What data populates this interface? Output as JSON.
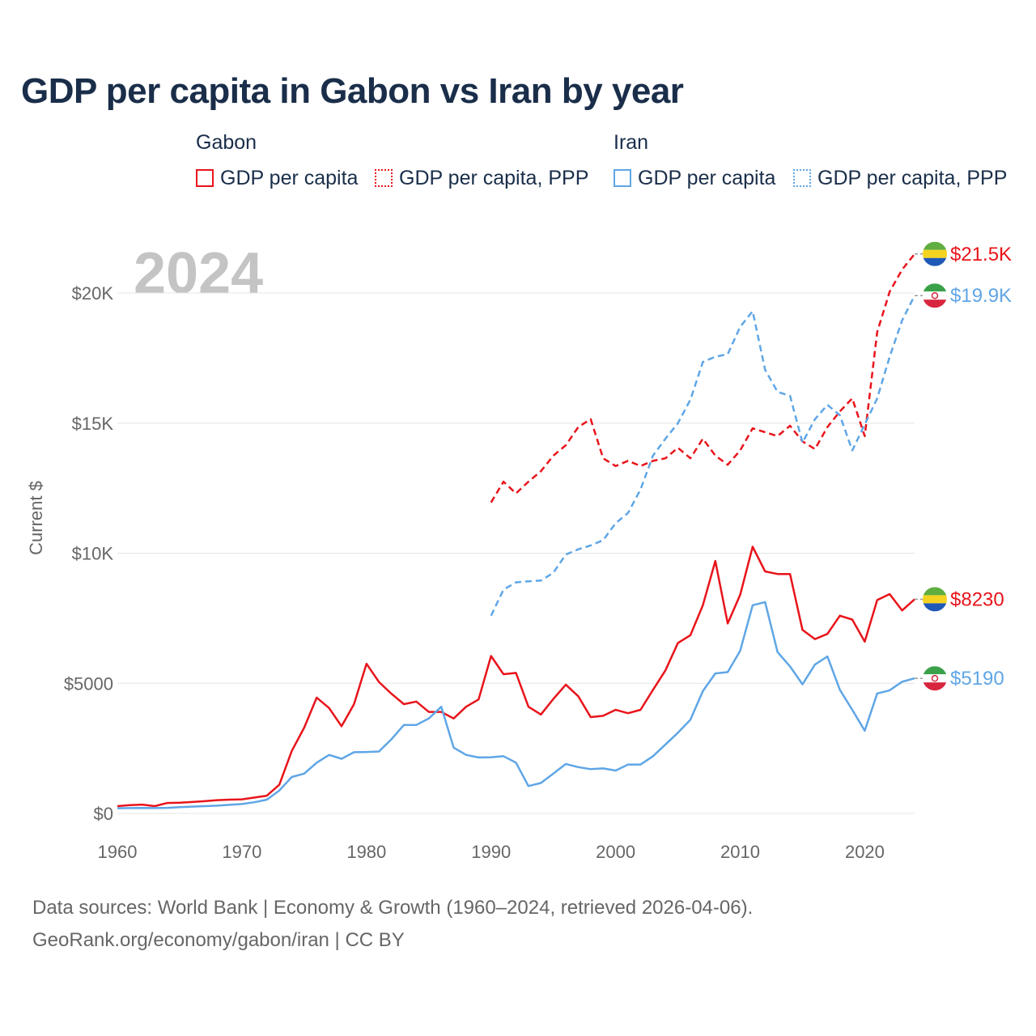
{
  "title": "GDP per capita in Gabon vs Iran by year",
  "year_watermark": "2024",
  "legend": {
    "groups": [
      {
        "title": "Gabon",
        "items": [
          {
            "label": "GDP per capita",
            "color": "#e8141b",
            "style": "solid"
          },
          {
            "label": "GDP per capita, PPP",
            "color": "#e8141b",
            "style": "dotted"
          }
        ]
      },
      {
        "title": "Iran",
        "items": [
          {
            "label": "GDP per capita",
            "color": "#5fa6e6",
            "style": "solid"
          },
          {
            "label": "GDP per capita, PPP",
            "color": "#5fa6e6",
            "style": "dotted"
          }
        ]
      }
    ]
  },
  "footer": {
    "line1": "Data sources: World Bank | Economy & Growth (1960–2024, retrieved 2026-04-06).",
    "line2": "GeoRank.org/economy/gabon/iran | CC BY"
  },
  "chart_data": {
    "type": "line",
    "title": "GDP per capita in Gabon vs Iran by year",
    "xlabel": "",
    "ylabel": "Current $",
    "xlim": [
      1960,
      2024
    ],
    "ylim": [
      0,
      22000
    ],
    "x_ticks": [
      1960,
      1970,
      1980,
      1990,
      2000,
      2010,
      2020
    ],
    "x_tick_labels": [
      "1960",
      "1970",
      "1980",
      "1990",
      "2000",
      "2010",
      "2020"
    ],
    "y_ticks": [
      0,
      5000,
      10000,
      15000,
      20000
    ],
    "y_tick_labels": [
      "$0",
      "$5000",
      "$10K",
      "$15K",
      "$20K"
    ],
    "grid": true,
    "series": [
      {
        "name": "Gabon GDP per capita",
        "country": "Gabon",
        "color": "#e8141b",
        "dashed": false,
        "end_label": "$8230",
        "x_start": 1960,
        "values": [
          280,
          320,
          340,
          280,
          400,
          410,
          440,
          470,
          510,
          530,
          540,
          610,
          680,
          1100,
          2400,
          3300,
          4450,
          4050,
          3350,
          4200,
          5750,
          5050,
          4600,
          4200,
          4300,
          3900,
          3900,
          3650,
          4100,
          4380,
          6050,
          5350,
          5400,
          4100,
          3800,
          4400,
          4950,
          4500,
          3700,
          3750,
          3980,
          3850,
          3980,
          4750,
          5500,
          6550,
          6850,
          8000,
          9700,
          7300,
          8400,
          10250,
          9300,
          9200,
          9200,
          7050,
          6700,
          6900,
          7600,
          7450,
          6600,
          8200,
          8430,
          7800,
          8230
        ]
      },
      {
        "name": "Iran GDP per capita",
        "country": "Iran",
        "color": "#5fa6e6",
        "dashed": false,
        "end_label": "$5190",
        "x_start": 1960,
        "values": [
          200,
          205,
          210,
          205,
          215,
          240,
          260,
          280,
          300,
          330,
          360,
          430,
          530,
          880,
          1400,
          1530,
          1950,
          2250,
          2100,
          2350,
          2360,
          2380,
          2850,
          3400,
          3400,
          3650,
          4100,
          2530,
          2250,
          2150,
          2160,
          2200,
          1950,
          1050,
          1170,
          1530,
          1900,
          1780,
          1700,
          1730,
          1650,
          1880,
          1880,
          2200,
          2650,
          3100,
          3600,
          4700,
          5380,
          5430,
          6250,
          8000,
          8120,
          6200,
          5650,
          4960,
          5720,
          6030,
          4750,
          3980,
          3180,
          4610,
          4730,
          5060,
          5190
        ]
      },
      {
        "name": "Gabon GDP per capita, PPP",
        "country": "Gabon",
        "color": "#e8141b",
        "dashed": true,
        "end_label": "$21.5K",
        "x_start": 1990,
        "values": [
          11950,
          12750,
          12300,
          12750,
          13150,
          13750,
          14150,
          14850,
          15150,
          13650,
          13350,
          13550,
          13350,
          13550,
          13650,
          14050,
          13650,
          14400,
          13750,
          13400,
          13950,
          14800,
          14650,
          14500,
          14900,
          14300,
          14000,
          14850,
          15450,
          15950,
          14500,
          18500,
          20050,
          20900,
          21500
        ]
      },
      {
        "name": "Iran GDP per capita, PPP",
        "country": "Iran",
        "color": "#5fa6e6",
        "dashed": true,
        "end_label": "$19.9K",
        "x_start": 1990,
        "values": [
          7600,
          8600,
          8880,
          8920,
          8950,
          9250,
          9950,
          10150,
          10300,
          10500,
          11150,
          11550,
          12450,
          13750,
          14400,
          15000,
          15900,
          17350,
          17550,
          17650,
          18700,
          19300,
          17050,
          16200,
          16050,
          14250,
          15150,
          15700,
          15300,
          13950,
          14950,
          15950,
          17550,
          18950,
          19900
        ]
      }
    ]
  }
}
